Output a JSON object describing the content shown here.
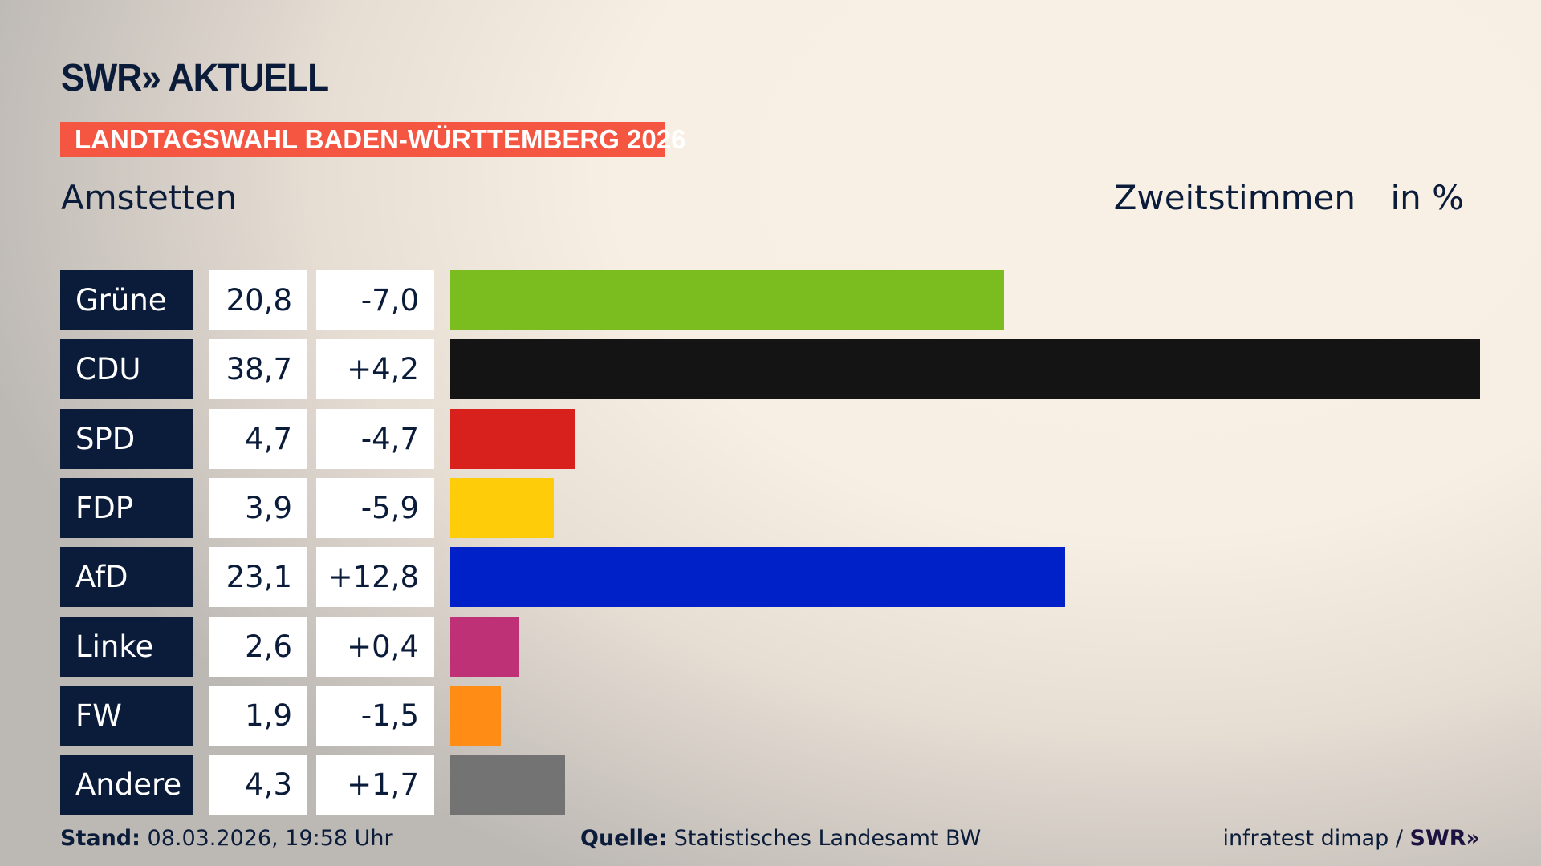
{
  "header": {
    "logo": "SWR» AKTUELL",
    "banner": "LANDTAGSWAHL BADEN-WÜRTTEMBERG 2026",
    "region": "Amstetten",
    "metric": "Zweitstimmen",
    "unit": "in %"
  },
  "chart_data": {
    "type": "bar",
    "orientation": "horizontal",
    "categories": [
      "Grüne",
      "CDU",
      "SPD",
      "FDP",
      "AfD",
      "Linke",
      "FW",
      "Andere"
    ],
    "values": [
      20.8,
      38.7,
      4.7,
      3.9,
      23.1,
      2.6,
      1.9,
      4.3
    ],
    "value_labels": [
      "20,8",
      "38,7",
      "4,7",
      "3,9",
      "23,1",
      "2,6",
      "1,9",
      "4,3"
    ],
    "diff_labels": [
      "-7,0",
      "+4,2",
      "-4,7",
      "-5,9",
      "+12,8",
      "+0,4",
      "-1,5",
      "+1,7"
    ],
    "colors": [
      "#7bbd1f",
      "#141414",
      "#d8201d",
      "#ffcc0a",
      "#0020c8",
      "#bf3176",
      "#ff8c14",
      "#737373"
    ]
  },
  "footer": {
    "stand_label": "Stand:",
    "stand_value": "08.03.2026, 19:58 Uhr",
    "source_label": "Quelle:",
    "source_value": "Statistisches Landesamt BW",
    "credit": "infratest dimap / ",
    "credit_logo": "SWR»"
  }
}
